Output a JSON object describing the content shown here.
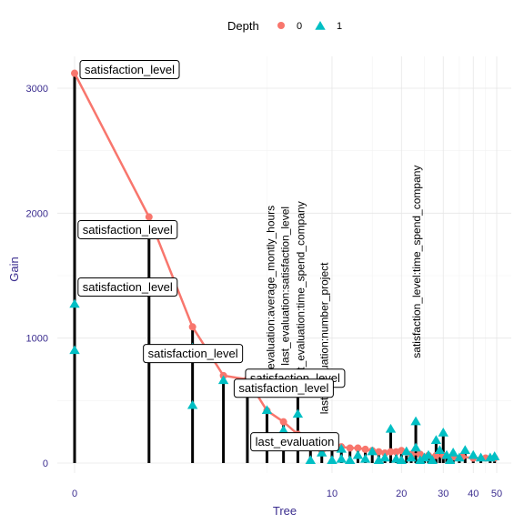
{
  "chart_data": {
    "type": "scatter",
    "xlabel": "Tree",
    "ylabel": "Gain",
    "x_scale": "log1p",
    "xlim": [
      0,
      50
    ],
    "ylim": [
      0,
      3250
    ],
    "x_ticks": [
      0,
      10,
      20,
      30,
      40,
      50
    ],
    "y_ticks": [
      0,
      1000,
      2000,
      3000
    ],
    "grid": true,
    "legend": {
      "title": "Depth",
      "position": "top",
      "entries": [
        "0",
        "1"
      ]
    },
    "colors": {
      "depth0": "#f8766d",
      "depth1": "#00bfc4",
      "stem": "#000000",
      "axis_text": "#3b2d8f"
    },
    "stems": [
      {
        "x": 0,
        "y": 3120
      },
      {
        "x": 1,
        "y": 1970
      },
      {
        "x": 2,
        "y": 1090
      },
      {
        "x": 3,
        "y": 700
      },
      {
        "x": 4,
        "y": 670
      },
      {
        "x": 5,
        "y": 420
      },
      {
        "x": 6,
        "y": 330
      },
      {
        "x": 7,
        "y": 570
      },
      {
        "x": 8,
        "y": 200
      },
      {
        "x": 9,
        "y": 100
      },
      {
        "x": 10,
        "y": 140
      },
      {
        "x": 11,
        "y": 130
      },
      {
        "x": 12,
        "y": 120
      },
      {
        "x": 13,
        "y": 120
      },
      {
        "x": 14,
        "y": 110
      },
      {
        "x": 15,
        "y": 90
      },
      {
        "x": 16,
        "y": 80
      },
      {
        "x": 17,
        "y": 90
      },
      {
        "x": 18,
        "y": 270
      },
      {
        "x": 19,
        "y": 90
      },
      {
        "x": 20,
        "y": 100
      },
      {
        "x": 21,
        "y": 60
      },
      {
        "x": 22,
        "y": 60
      },
      {
        "x": 23,
        "y": 330
      },
      {
        "x": 24,
        "y": 80
      },
      {
        "x": 25,
        "y": 60
      },
      {
        "x": 26,
        "y": 70
      },
      {
        "x": 27,
        "y": 60
      },
      {
        "x": 28,
        "y": 180
      },
      {
        "x": 29,
        "y": 90
      },
      {
        "x": 30,
        "y": 240
      },
      {
        "x": 31,
        "y": 60
      },
      {
        "x": 33,
        "y": 80
      },
      {
        "x": 35,
        "y": 60
      },
      {
        "x": 37,
        "y": 100
      },
      {
        "x": 40,
        "y": 60
      },
      {
        "x": 43,
        "y": 40
      },
      {
        "x": 47,
        "y": 50
      },
      {
        "x": 49,
        "y": 40
      }
    ],
    "series": [
      {
        "name": "0",
        "x": [
          0,
          1,
          2,
          3,
          4,
          5,
          6,
          7,
          8,
          9,
          10,
          11,
          12,
          13,
          14,
          15,
          16,
          17,
          18,
          19,
          20,
          22,
          24,
          26,
          28,
          30,
          33,
          36,
          40,
          45,
          49
        ],
        "y": [
          3120,
          1970,
          1090,
          700,
          670,
          420,
          330,
          230,
          200,
          100,
          140,
          130,
          120,
          120,
          110,
          100,
          90,
          80,
          90,
          90,
          100,
          70,
          70,
          60,
          60,
          60,
          50,
          50,
          40,
          40,
          40
        ]
      },
      {
        "name": "1",
        "x": [
          0,
          0,
          1,
          2,
          2,
          3,
          4,
          5,
          6,
          7,
          7,
          8,
          9,
          10,
          11,
          11,
          12,
          13,
          14,
          15,
          16,
          17,
          18,
          19,
          20,
          21,
          22,
          23,
          23,
          24,
          25,
          26,
          27,
          28,
          29,
          30,
          31,
          32,
          33,
          35,
          37,
          40,
          43,
          47,
          49
        ],
        "y": [
          1270,
          900,
          1380,
          920,
          460,
          660,
          650,
          420,
          260,
          560,
          390,
          20,
          80,
          20,
          30,
          110,
          20,
          60,
          30,
          90,
          20,
          40,
          270,
          30,
          20,
          90,
          40,
          330,
          120,
          20,
          40,
          60,
          20,
          180,
          100,
          240,
          60,
          20,
          80,
          40,
          100,
          60,
          40,
          40,
          50
        ]
      }
    ],
    "labels": [
      {
        "text": "satisfaction_level",
        "x": 0,
        "y": 3120,
        "style": "box"
      },
      {
        "text": "satisfaction_level",
        "x": 1,
        "y": 1970,
        "style": "box"
      },
      {
        "text": "satisfaction_level",
        "x": 1,
        "y": 1380,
        "style": "box"
      },
      {
        "text": "satisfaction_level",
        "x": 2,
        "y": 920,
        "style": "box"
      },
      {
        "text": "satisfaction_level",
        "x": 4,
        "y": 650,
        "style": "box"
      },
      {
        "text": "satisfaction_level",
        "x": 7,
        "y": 570,
        "style": "box"
      },
      {
        "text": "last_evaluation",
        "x": 6,
        "y": 330,
        "style": "box"
      },
      {
        "text": "last_evaluation:average_montly_hours",
        "x": 5,
        "y": 420,
        "style": "vertical"
      },
      {
        "text": "last_evaluation:satisfaction_level",
        "x": 6,
        "y": 330,
        "style": "vertical"
      },
      {
        "text": "last_evaluation:time_spend_company",
        "x": 7,
        "y": 560,
        "style": "vertical"
      },
      {
        "text": "last_evaluation:number_project",
        "x": 9,
        "y": 100,
        "style": "vertical"
      },
      {
        "text": "satisfaction_level:time_spend_company",
        "x": 23,
        "y": 330,
        "style": "vertical"
      }
    ]
  }
}
